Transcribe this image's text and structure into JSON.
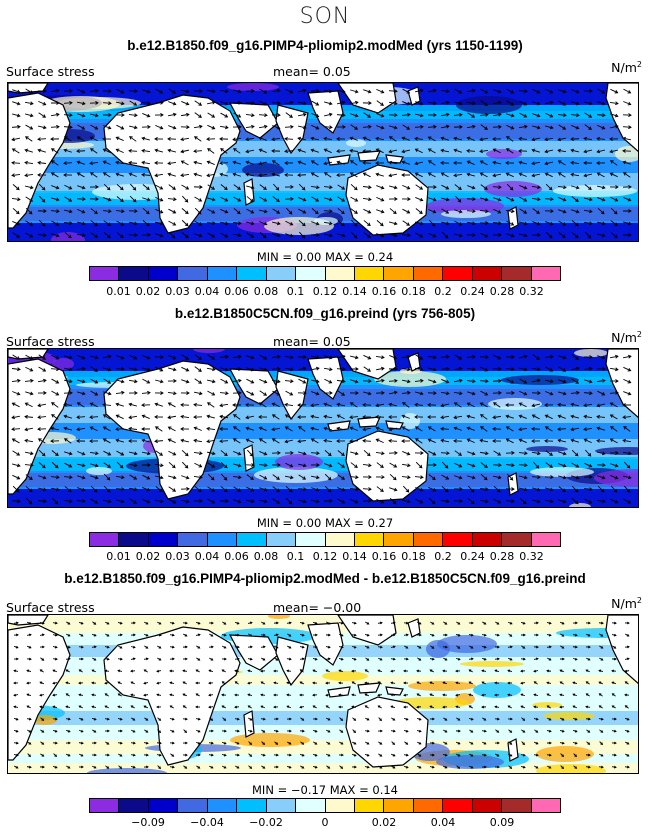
{
  "season": "SON",
  "panels": [
    {
      "title": "b.e12.B1850.f09_g16.PIMP4-pliomip2.modMed (yrs 1150-1199)",
      "left_label": "Surface stress",
      "mean_label": "mean=   0.05",
      "unit": "N/m",
      "unit_sup": "2",
      "minmax": "MIN =    0.00  MAX =    0.24",
      "colorbar": {
        "colors": [
          "#8b2be2",
          "#0a0a8a",
          "#0000cd",
          "#4169e1",
          "#1e90ff",
          "#00bfff",
          "#87cefa",
          "#e0ffff",
          "#fffacd",
          "#ffd700",
          "#ffa500",
          "#ff6a00",
          "#ff0000",
          "#cd0000",
          "#a52a2a",
          "#ff69b4"
        ],
        "ticks": [
          "0.01",
          "0.02",
          "0.03",
          "0.04",
          "0.06",
          "0.08",
          "0.1",
          "0.12",
          "0.14",
          "0.16",
          "0.18",
          "0.2",
          "0.24",
          "0.28",
          "0.32"
        ]
      },
      "style": "mean"
    },
    {
      "title": "b.e12.B1850C5CN.f09_g16.preind (yrs 756-805)",
      "left_label": "Surface stress",
      "mean_label": "mean=   0.05",
      "unit": "N/m",
      "unit_sup": "2",
      "minmax": "MIN =    0.00  MAX =    0.27",
      "colorbar": {
        "colors": [
          "#8b2be2",
          "#0a0a8a",
          "#0000cd",
          "#4169e1",
          "#1e90ff",
          "#00bfff",
          "#87cefa",
          "#e0ffff",
          "#fffacd",
          "#ffd700",
          "#ffa500",
          "#ff6a00",
          "#ff0000",
          "#cd0000",
          "#a52a2a",
          "#ff69b4"
        ],
        "ticks": [
          "0.01",
          "0.02",
          "0.03",
          "0.04",
          "0.06",
          "0.08",
          "0.1",
          "0.12",
          "0.14",
          "0.16",
          "0.18",
          "0.2",
          "0.24",
          "0.28",
          "0.32"
        ]
      },
      "style": "mean"
    },
    {
      "title": "b.e12.B1850.f09_g16.PIMP4-pliomip2.modMed - b.e12.B1850C5CN.f09_g16.preind",
      "left_label": "Surface stress",
      "mean_label": "mean=   −0.00",
      "unit": "N/m",
      "unit_sup": "2",
      "minmax": "MIN =  −0.17  MAX =    0.14",
      "colorbar": {
        "colors": [
          "#8b2be2",
          "#0a0a8a",
          "#0000cd",
          "#4169e1",
          "#1e90ff",
          "#00bfff",
          "#87cefa",
          "#e0ffff",
          "#fffacd",
          "#ffd700",
          "#ffa500",
          "#ff6a00",
          "#ff0000",
          "#cd0000",
          "#a52a2a",
          "#ff69b4"
        ],
        "ticks": [
          "",
          "−0.09",
          "",
          "−0.04",
          "",
          "−0.02",
          "",
          "0",
          "",
          "0.02",
          "",
          "0.04",
          "",
          "0.09",
          ""
        ]
      },
      "style": "diff"
    }
  ]
}
